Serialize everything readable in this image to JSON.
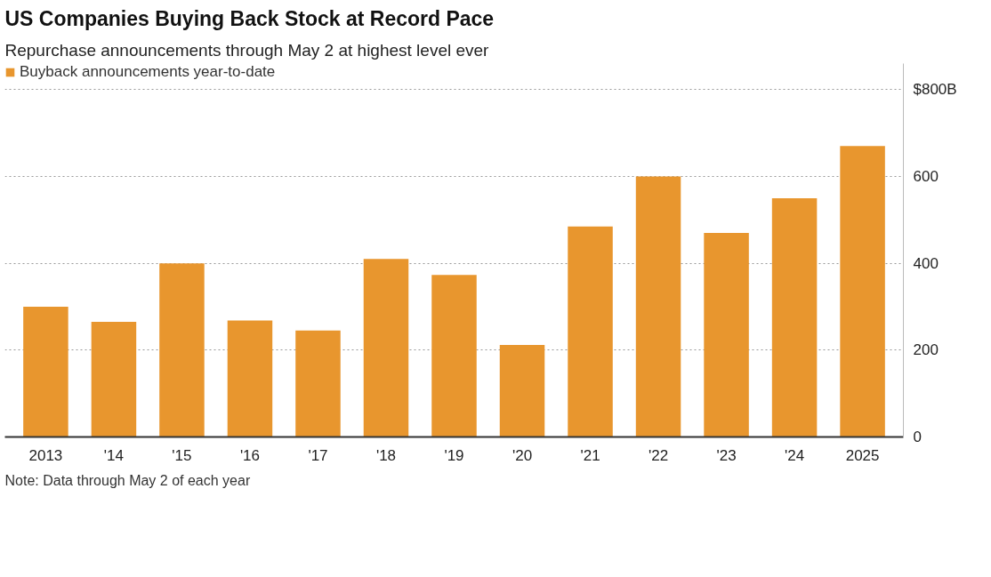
{
  "chart_data": {
    "type": "bar",
    "title": "US Companies Buying Back Stock at Record Pace",
    "subtitle": "Repurchase announcements through May 2 at highest level ever",
    "categories": [
      "2013",
      "'14",
      "'15",
      "'16",
      "'17",
      "'18",
      "'19",
      "'20",
      "'21",
      "'22",
      "'23",
      "'24",
      "2025"
    ],
    "series": [
      {
        "name": "Buyback announcements year-to-date",
        "color": "#e8962e",
        "values": [
          300,
          265,
          400,
          268,
          245,
          410,
          373,
          212,
          485,
          600,
          470,
          550,
          670
        ]
      }
    ],
    "ylim": [
      0,
      860
    ],
    "yticks": [
      0,
      200,
      400,
      600,
      {
        "value": 800,
        "label": "$800B"
      }
    ],
    "grid": "y",
    "legend": "top left",
    "annotations": [
      "Note: Data through May 2 of each year"
    ]
  }
}
